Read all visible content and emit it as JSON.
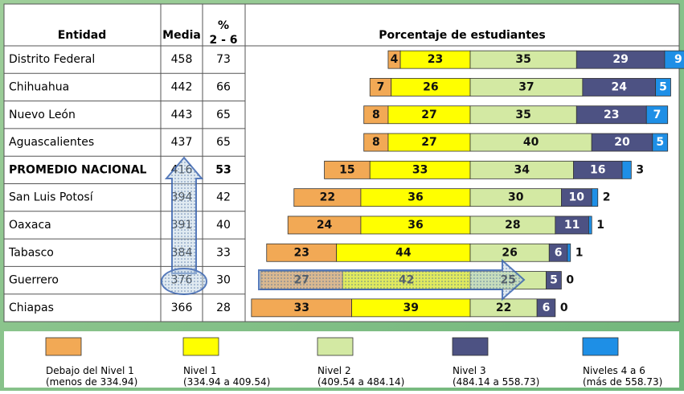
{
  "chart_data": {
    "type": "bar",
    "orientation": "horizontal",
    "stacked": true,
    "title": "Porcentaje de estudiantes",
    "category_label": "Entidad",
    "categories": [
      "Distrito Federal",
      "Chihuahua",
      "Nuevo León",
      "Aguascalientes",
      "PROMEDIO NACIONAL",
      "San Luis Potosí",
      "Oaxaca",
      "Tabasco",
      "Guerrero",
      "Chiapas"
    ],
    "columns": [
      {
        "name": "Media",
        "values": [
          458,
          442,
          443,
          437,
          416,
          394,
          391,
          384,
          376,
          366
        ]
      },
      {
        "name": "% 2 - 6",
        "values": [
          73,
          66,
          65,
          65,
          53,
          42,
          40,
          33,
          30,
          28
        ]
      }
    ],
    "series": [
      {
        "name": "Debajo del Nivel 1",
        "range": "(menos de 334.94)",
        "color": "#f2a955",
        "values": [
          4,
          7,
          8,
          8,
          15,
          22,
          24,
          23,
          27,
          33
        ]
      },
      {
        "name": "Nivel 1",
        "range": "(334.94 a 409.54)",
        "color": "#ffff00",
        "values": [
          23,
          26,
          27,
          27,
          33,
          36,
          36,
          44,
          42,
          39
        ]
      },
      {
        "name": "Nivel 2",
        "range": "(409.54 a 484.14)",
        "color": "#d3e9a3",
        "values": [
          35,
          37,
          35,
          40,
          34,
          30,
          28,
          26,
          25,
          22
        ]
      },
      {
        "name": "Nivel 3",
        "range": "(484.14 a 558.73)",
        "color": "#4d5283",
        "values": [
          29,
          24,
          23,
          20,
          16,
          10,
          11,
          6,
          5,
          6
        ]
      },
      {
        "name": "Niveles 4 a 6",
        "range": "(más de 558.73)",
        "color": "#1e8fe6",
        "values": [
          9,
          5,
          7,
          5,
          3,
          2,
          1,
          1,
          0,
          0
        ]
      }
    ]
  }
}
